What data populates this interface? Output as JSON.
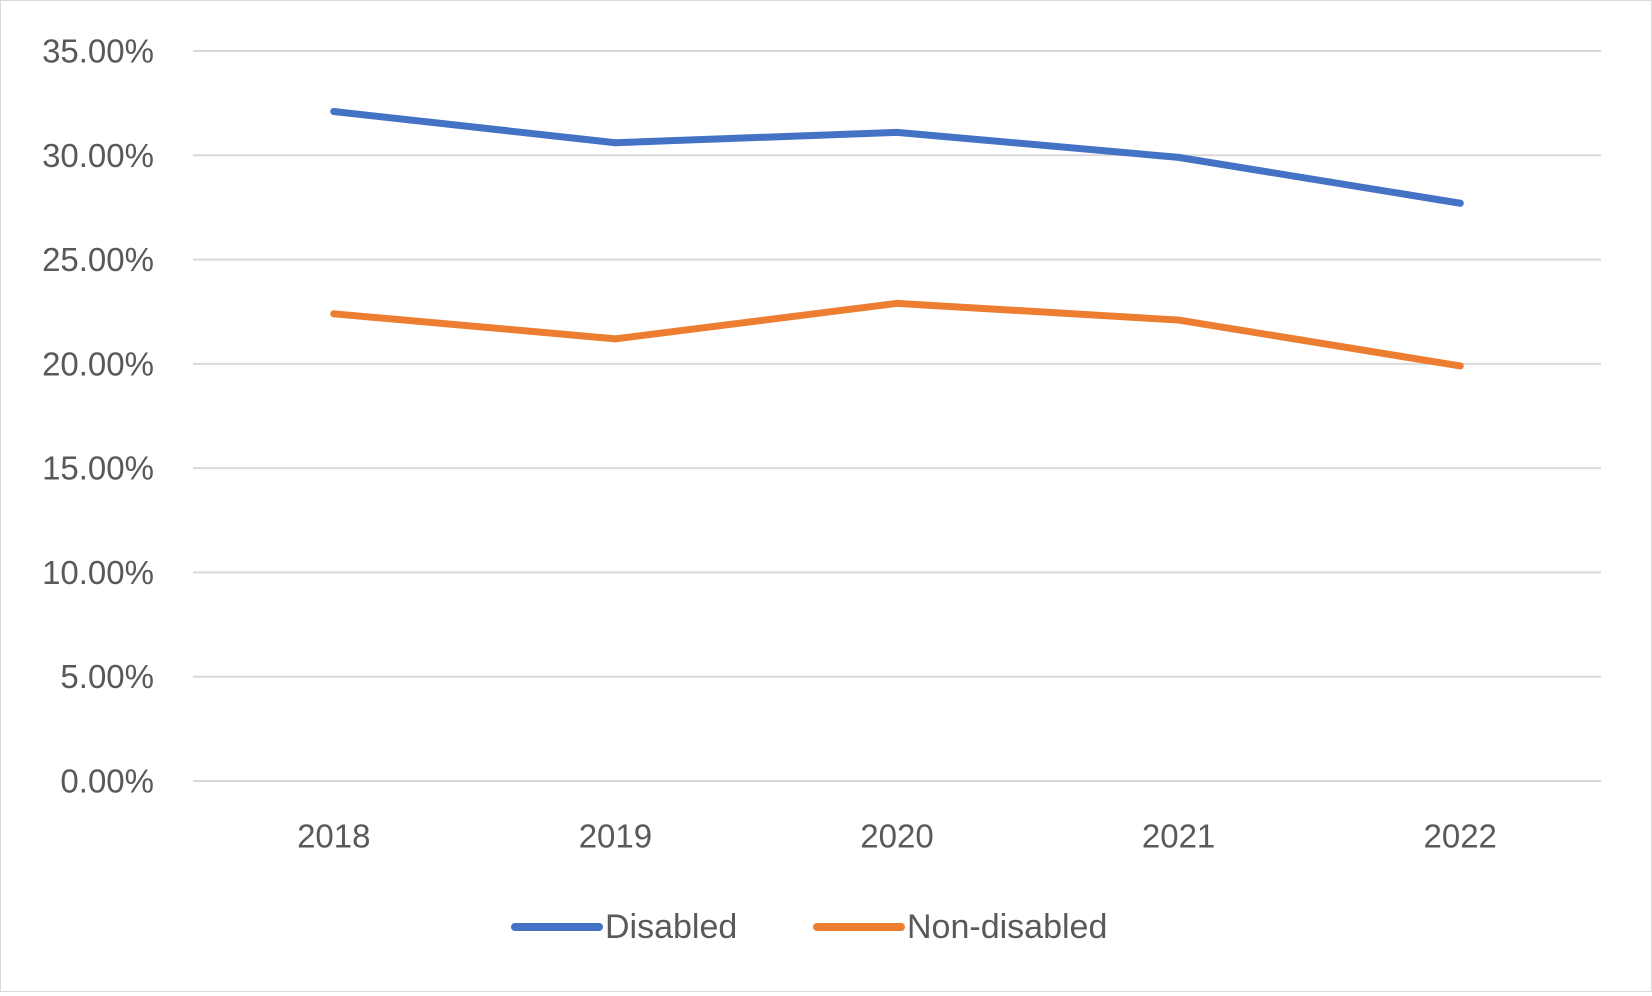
{
  "chart_data": {
    "type": "line",
    "title": "",
    "xlabel": "",
    "ylabel": "",
    "categories": [
      "2018",
      "2019",
      "2020",
      "2021",
      "2022"
    ],
    "series": [
      {
        "name": "Disabled",
        "color": "#4472c4",
        "values": [
          32.1,
          30.6,
          31.1,
          29.9,
          27.7
        ]
      },
      {
        "name": "Non-disabled",
        "color": "#ed7d31",
        "values": [
          22.4,
          21.2,
          22.9,
          22.1,
          19.9
        ]
      }
    ],
    "ylim": [
      0,
      35
    ],
    "ytick_values": [
      0,
      5,
      10,
      15,
      20,
      25,
      30,
      35
    ],
    "ytick_labels": [
      "0.00%",
      "5.00%",
      "10.00%",
      "15.00%",
      "20.00%",
      "25.00%",
      "30.00%",
      "35.00%"
    ],
    "grid": true,
    "legend_position": "bottom-center"
  }
}
